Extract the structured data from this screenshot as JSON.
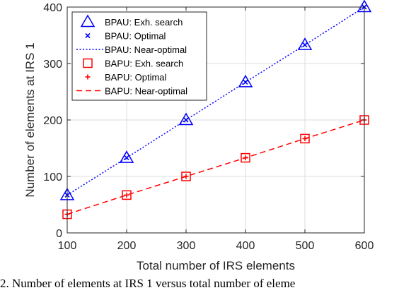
{
  "chart_data": {
    "type": "line",
    "x": [
      100,
      200,
      300,
      400,
      500,
      600
    ],
    "xlabel": "Total number of IRS elements",
    "ylabel": "Number of elements at IRS 1",
    "xlim": [
      100,
      600
    ],
    "ylim": [
      0,
      400
    ],
    "xticks": [
      100,
      200,
      300,
      400,
      500,
      600
    ],
    "yticks": [
      0,
      100,
      200,
      300,
      400
    ],
    "grid": true,
    "legend_position": "top-left",
    "series": [
      {
        "name": "BPAU: Exh. search",
        "values": [
          67,
          133,
          200,
          267,
          333,
          400
        ],
        "color": "#0000ff",
        "marker": "triangle",
        "line": "none"
      },
      {
        "name": "BPAU: Optimal",
        "values": [
          67,
          133,
          200,
          267,
          333,
          400
        ],
        "color": "#0000ff",
        "marker": "x",
        "line": "none"
      },
      {
        "name": "BPAU: Near-optimal",
        "values": [
          67,
          133,
          200,
          267,
          333,
          400
        ],
        "color": "#0000ff",
        "marker": "none",
        "line": "dotted"
      },
      {
        "name": "BAPU: Exh. search",
        "values": [
          33,
          67,
          100,
          133,
          167,
          200
        ],
        "color": "#ff0000",
        "marker": "square",
        "line": "none"
      },
      {
        "name": "BAPU: Optimal",
        "values": [
          33,
          67,
          100,
          133,
          167,
          200
        ],
        "color": "#ff0000",
        "marker": "plus",
        "line": "none"
      },
      {
        "name": "BAPU: Near-optimal",
        "values": [
          33,
          67,
          100,
          133,
          167,
          200
        ],
        "color": "#ff0000",
        "marker": "none",
        "line": "dashed"
      }
    ]
  },
  "caption": "2.   Number of elements at IRS 1 versus total number of eleme"
}
